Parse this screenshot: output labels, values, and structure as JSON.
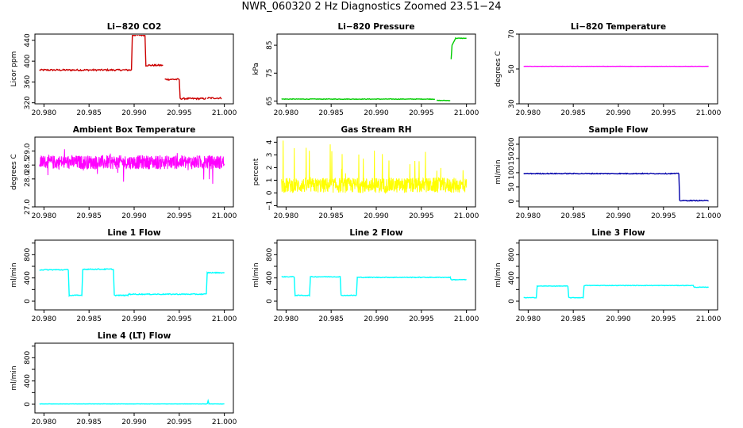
{
  "figure": {
    "title": "NWR_060320  2 Hz Diagnostics Zoomed 23.51−24"
  },
  "chart_data": [
    {
      "type": "line",
      "title": "Li−820 CO2",
      "ylabel": "Licor ppm",
      "color": "#cc0000",
      "xlim": [
        20.979,
        21.001
      ],
      "ylim": [
        318,
        452
      ],
      "xticks": [
        20.98,
        20.985,
        20.99,
        20.995,
        21.0
      ],
      "xtick_labels": [
        "20.980",
        "20.985",
        "20.990",
        "20.995",
        "21.000"
      ],
      "yticks": [
        320,
        360,
        400,
        440
      ],
      "noise": 1.5,
      "segments": [
        [
          [
            20.9795,
            383
          ],
          [
            20.9897,
            383
          ]
        ],
        [
          [
            20.9897,
            383
          ],
          [
            20.9898,
            450
          ],
          [
            20.9912,
            450
          ],
          [
            20.9913,
            392
          ],
          [
            20.9932,
            392
          ]
        ],
        [
          [
            20.9934,
            365
          ],
          [
            20.995,
            365
          ],
          [
            20.9951,
            328
          ],
          [
            20.998,
            328
          ]
        ],
        [
          [
            20.9981,
            329
          ],
          [
            20.9997,
            329
          ]
        ]
      ]
    },
    {
      "type": "line",
      "title": "Li−820 Pressure",
      "ylabel": "kPa",
      "color": "#00cc00",
      "xlim": [
        20.979,
        21.001
      ],
      "ylim": [
        64,
        89
      ],
      "xticks": [
        20.98,
        20.985,
        20.99,
        20.995,
        21.0
      ],
      "xtick_labels": [
        "20.980",
        "20.985",
        "20.990",
        "20.995",
        "21.000"
      ],
      "yticks": [
        65,
        75,
        85
      ],
      "noise": 0.1,
      "segments": [
        [
          [
            20.9795,
            65.7
          ],
          [
            20.9965,
            65.7
          ]
        ],
        [
          [
            20.9967,
            65.2
          ],
          [
            20.9982,
            65.2
          ]
        ],
        [
          [
            20.9983,
            80
          ],
          [
            20.9984,
            85
          ],
          [
            20.9988,
            87.5
          ],
          [
            21.0,
            87.5
          ]
        ]
      ]
    },
    {
      "type": "line",
      "title": "Li−820 Temperature",
      "ylabel": "degrees C",
      "color": "#ff00ff",
      "xlim": [
        20.979,
        21.001
      ],
      "ylim": [
        30,
        70
      ],
      "xticks": [
        20.98,
        20.985,
        20.99,
        20.995,
        21.0
      ],
      "xtick_labels": [
        "20.980",
        "20.985",
        "20.990",
        "20.995",
        "21.000"
      ],
      "yticks": [
        30,
        50,
        70
      ],
      "noise": 0.05,
      "segments": [
        [
          [
            20.9795,
            51.5
          ],
          [
            21.0,
            51.5
          ]
        ]
      ]
    },
    {
      "type": "line",
      "title": "Ambient Box Temperature",
      "ylabel": "degrees C",
      "color": "#ff00ff",
      "xlim": [
        20.979,
        21.001
      ],
      "ylim": [
        27.0,
        29.5
      ],
      "xticks": [
        20.98,
        20.985,
        20.99,
        20.995,
        21.0
      ],
      "xtick_labels": [
        "20.980",
        "20.985",
        "20.990",
        "20.995",
        "21.000"
      ],
      "yticks": [
        27.0,
        28.0,
        28.5,
        29.0
      ],
      "ytick_labels": [
        "27.0",
        "28.0",
        "28.5",
        "29.0"
      ],
      "noise": 0.25,
      "dense": true,
      "segments": [
        [
          [
            20.9795,
            28.6
          ],
          [
            21.0,
            28.6
          ]
        ]
      ]
    },
    {
      "type": "line",
      "title": "Gas Stream RH",
      "ylabel": "percent",
      "color": "#ffff00",
      "xlim": [
        20.979,
        21.001
      ],
      "ylim": [
        -1.1,
        4.4
      ],
      "xticks": [
        20.98,
        20.985,
        20.99,
        20.995,
        21.0
      ],
      "xtick_labels": [
        "20.980",
        "20.985",
        "20.990",
        "20.995",
        "21.000"
      ],
      "yticks": [
        -1,
        0,
        1,
        2,
        3,
        4
      ],
      "ytick_labels": [
        "−1",
        "0",
        "1",
        "2",
        "3",
        "4"
      ],
      "noise": 0.6,
      "dense": true,
      "spikes": true,
      "segments": [
        [
          [
            20.9795,
            0.6
          ],
          [
            21.0,
            0.6
          ]
        ]
      ]
    },
    {
      "type": "line",
      "title": "Sample Flow",
      "ylabel": "ml/min",
      "color": "#0000aa",
      "xlim": [
        20.979,
        21.001
      ],
      "ylim": [
        -20,
        225
      ],
      "xticks": [
        20.98,
        20.985,
        20.99,
        20.995,
        21.0
      ],
      "xtick_labels": [
        "20.980",
        "20.985",
        "20.990",
        "20.995",
        "21.000"
      ],
      "yticks": [
        0,
        50,
        100,
        150,
        200
      ],
      "ytick_labels": [
        "0",
        "50",
        "100",
        "150",
        "200"
      ],
      "noise": 1.5,
      "segments": [
        [
          [
            20.9795,
            97
          ],
          [
            20.9967,
            97
          ],
          [
            20.9968,
            2
          ],
          [
            21.0,
            2
          ]
        ]
      ]
    },
    {
      "type": "line",
      "title": "Line 1 Flow",
      "ylabel": "ml/min",
      "color": "#00ffff",
      "xlim": [
        20.979,
        21.001
      ],
      "ylim": [
        -150,
        1050
      ],
      "xticks": [
        20.98,
        20.985,
        20.99,
        20.995,
        21.0
      ],
      "xtick_labels": [
        "20.980",
        "20.985",
        "20.990",
        "20.995",
        "21.000"
      ],
      "yticks": [
        0,
        400,
        800
      ],
      "ytick_labels": [
        "0",
        "400",
        "800"
      ],
      "y_minor": [
        200,
        600,
        1000
      ],
      "noise": 8,
      "segments": [
        [
          [
            20.9795,
            540
          ],
          [
            20.9827,
            540
          ],
          [
            20.9828,
            100
          ],
          [
            20.9842,
            100
          ],
          [
            20.9843,
            550
          ],
          [
            20.9877,
            550
          ],
          [
            20.9878,
            100
          ],
          [
            20.9893,
            100
          ],
          [
            20.9894,
            120
          ],
          [
            20.998,
            120
          ],
          [
            20.9981,
            490
          ],
          [
            21.0,
            490
          ]
        ]
      ]
    },
    {
      "type": "line",
      "title": "Line 2 Flow",
      "ylabel": "ml/min",
      "color": "#00ffff",
      "xlim": [
        20.979,
        21.001
      ],
      "ylim": [
        -150,
        1050
      ],
      "xticks": [
        20.98,
        20.985,
        20.99,
        20.995,
        21.0
      ],
      "xtick_labels": [
        "20.980",
        "20.985",
        "20.990",
        "20.995",
        "21.000"
      ],
      "yticks": [
        0,
        400,
        800
      ],
      "ytick_labels": [
        "0",
        "400",
        "800"
      ],
      "y_minor": [
        200,
        600,
        1000
      ],
      "noise": 6,
      "segments": [
        [
          [
            20.9795,
            420
          ],
          [
            20.9809,
            420
          ],
          [
            20.981,
            100
          ],
          [
            20.9826,
            100
          ],
          [
            20.9827,
            420
          ],
          [
            20.986,
            420
          ],
          [
            20.9861,
            100
          ],
          [
            20.9878,
            100
          ],
          [
            20.9879,
            410
          ],
          [
            20.9982,
            410
          ],
          [
            20.9983,
            370
          ],
          [
            21.0,
            370
          ]
        ]
      ]
    },
    {
      "type": "line",
      "title": "Line 3 Flow",
      "ylabel": "ml/min",
      "color": "#00ffff",
      "xlim": [
        20.979,
        21.001
      ],
      "ylim": [
        -150,
        1050
      ],
      "xticks": [
        20.98,
        20.985,
        20.99,
        20.995,
        21.0
      ],
      "xtick_labels": [
        "20.980",
        "20.985",
        "20.990",
        "20.995",
        "21.000"
      ],
      "yticks": [
        0,
        400,
        800
      ],
      "ytick_labels": [
        "0",
        "400",
        "800"
      ],
      "y_minor": [
        200,
        600,
        1000
      ],
      "noise": 4,
      "segments": [
        [
          [
            20.9795,
            60
          ],
          [
            20.9809,
            60
          ],
          [
            20.981,
            260
          ],
          [
            20.9844,
            260
          ],
          [
            20.9845,
            60
          ],
          [
            20.9861,
            60
          ],
          [
            20.9862,
            270
          ],
          [
            20.9983,
            270
          ],
          [
            20.9984,
            240
          ],
          [
            21.0,
            240
          ]
        ]
      ]
    },
    {
      "type": "line",
      "title": "Line 4 (LT) Flow",
      "ylabel": "ml/min",
      "color": "#00ffff",
      "xlim": [
        20.979,
        21.001
      ],
      "ylim": [
        -150,
        1050
      ],
      "xticks": [
        20.98,
        20.985,
        20.99,
        20.995,
        21.0
      ],
      "xtick_labels": [
        "20.980",
        "20.985",
        "20.990",
        "20.995",
        "21.000"
      ],
      "yticks": [
        0,
        400,
        800
      ],
      "ytick_labels": [
        "0",
        "400",
        "800"
      ],
      "y_minor": [
        200,
        600,
        1000
      ],
      "noise": 2,
      "segments": [
        [
          [
            20.9795,
            5
          ],
          [
            20.9981,
            5
          ],
          [
            20.9982,
            60
          ],
          [
            20.9983,
            5
          ],
          [
            21.0,
            5
          ]
        ]
      ]
    }
  ]
}
